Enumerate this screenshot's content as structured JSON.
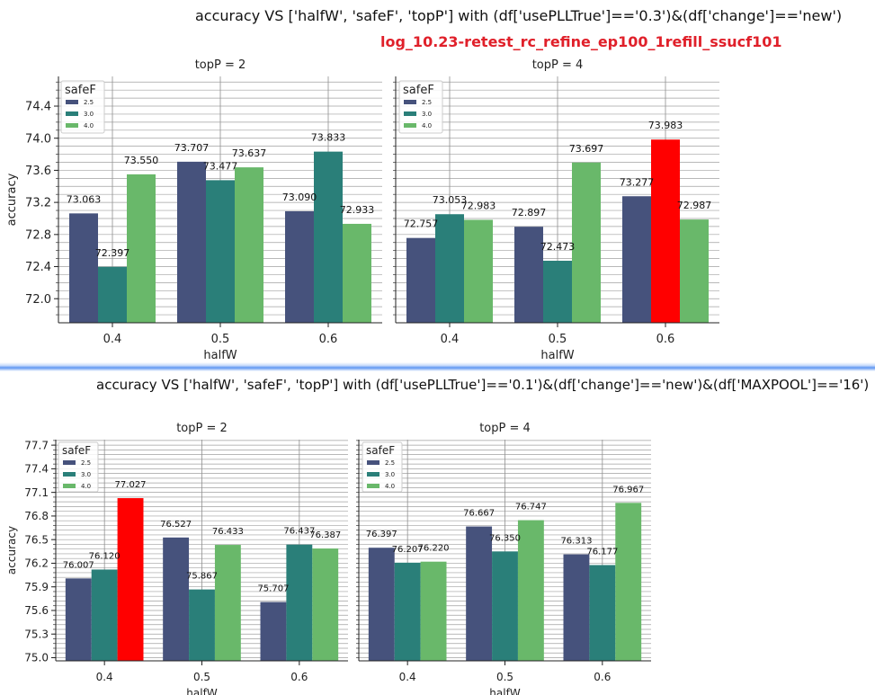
{
  "figure1": {
    "title": "accuracy VS ['halfW', 'safeF', 'topP'] with (df['usePLLTrue']=='0.3')&(df['change']=='new')",
    "subtitle": "log_10.23-retest_rc_refine_ep100_1refill_ssucf101"
  },
  "figure2": {
    "title": "accuracy VS ['halfW', 'safeF', 'topP'] with (df['usePLLTrue']=='0.1')&(df['change']=='new')&(df['MAXPOOL']=='16')"
  },
  "colors": {
    "series": [
      "#46527c",
      "#2a7f79",
      "#69b86a"
    ],
    "highlight": "#ff0000",
    "subtitle": "#e0202a"
  },
  "chart_data": [
    {
      "type": "bar",
      "figure": 1,
      "panel_title": "topP = 2",
      "xlabel": "halfW",
      "ylabel": "accuracy",
      "categories": [
        "0.4",
        "0.5",
        "0.6"
      ],
      "legend_title": "safeF",
      "legend_position": "upper-left",
      "series": [
        {
          "name": "2.5",
          "values": [
            73.063,
            73.707,
            73.09
          ],
          "labels": [
            "73.063",
            "73.707",
            "73.090"
          ]
        },
        {
          "name": "3.0",
          "values": [
            72.397,
            73.477,
            73.833
          ],
          "labels": [
            "72.397",
            "73.477",
            "73.833"
          ]
        },
        {
          "name": "4.0",
          "values": [
            73.55,
            73.637,
            72.933
          ],
          "labels": [
            "73.550",
            "73.637",
            "72.933"
          ]
        }
      ],
      "ylim": [
        71.7,
        74.77
      ],
      "yticks": [
        "72.0",
        "72.4",
        "72.8",
        "73.2",
        "73.6",
        "74.0",
        "74.4"
      ],
      "highlight": null,
      "grid": true
    },
    {
      "type": "bar",
      "figure": 1,
      "panel_title": "topP = 4",
      "xlabel": "halfW",
      "ylabel": "",
      "categories": [
        "0.4",
        "0.5",
        "0.6"
      ],
      "legend_title": "safeF",
      "legend_position": "upper-left",
      "series": [
        {
          "name": "2.5",
          "values": [
            72.757,
            72.897,
            73.277
          ],
          "labels": [
            "72.757",
            "72.897",
            "73.277"
          ]
        },
        {
          "name": "3.0",
          "values": [
            73.053,
            72.473,
            73.983
          ],
          "labels": [
            "73.053",
            "72.473",
            "73.983"
          ]
        },
        {
          "name": "4.0",
          "values": [
            72.983,
            73.697,
            72.987
          ],
          "labels": [
            "72.983",
            "73.697",
            "72.987"
          ]
        }
      ],
      "ylim": [
        71.7,
        74.77
      ],
      "yticks": [],
      "highlight": {
        "series": 1,
        "category": 2
      },
      "grid": true
    },
    {
      "type": "bar",
      "figure": 2,
      "panel_title": "topP = 2",
      "xlabel": "halfW",
      "ylabel": "accuracy",
      "categories": [
        "0.4",
        "0.5",
        "0.6"
      ],
      "legend_title": "safeF",
      "legend_position": "upper-left",
      "series": [
        {
          "name": "2.5",
          "values": [
            76.007,
            76.527,
            75.707
          ],
          "labels": [
            "76.007",
            "76.527",
            "75.707"
          ]
        },
        {
          "name": "3.0",
          "values": [
            76.12,
            75.867,
            76.437
          ],
          "labels": [
            "76.120",
            "75.867",
            "76.437"
          ]
        },
        {
          "name": "4.0",
          "values": [
            77.027,
            76.433,
            76.387
          ],
          "labels": [
            "77.027",
            "76.433",
            "76.387"
          ]
        }
      ],
      "ylim": [
        74.96,
        77.77
      ],
      "yticks": [
        "75.0",
        "75.3",
        "75.6",
        "75.9",
        "76.2",
        "76.5",
        "76.8",
        "77.1",
        "77.4",
        "77.7"
      ],
      "highlight": {
        "series": 2,
        "category": 0
      },
      "grid": true
    },
    {
      "type": "bar",
      "figure": 2,
      "panel_title": "topP = 4",
      "xlabel": "halfW",
      "ylabel": "",
      "categories": [
        "0.4",
        "0.5",
        "0.6"
      ],
      "legend_title": "safeF",
      "legend_position": "upper-left",
      "series": [
        {
          "name": "2.5",
          "values": [
            76.397,
            76.667,
            76.313
          ],
          "labels": [
            "76.397",
            "76.667",
            "76.313"
          ]
        },
        {
          "name": "3.0",
          "values": [
            76.207,
            76.35,
            76.177
          ],
          "labels": [
            "76.207",
            "76.350",
            "76.177"
          ]
        },
        {
          "name": "4.0",
          "values": [
            76.22,
            76.747,
            76.967
          ],
          "labels": [
            "76.220",
            "76.747",
            "76.967"
          ]
        }
      ],
      "ylim": [
        74.96,
        77.77
      ],
      "yticks": [],
      "highlight": null,
      "grid": true
    }
  ]
}
